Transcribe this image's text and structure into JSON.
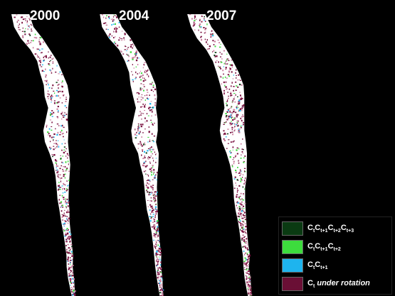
{
  "panels": [
    {
      "year": "2000"
    },
    {
      "year": "2004"
    },
    {
      "year": "2007"
    }
  ],
  "legend": [
    {
      "swatch": "#0a3a12",
      "base": "C",
      "parts": [
        [
          "",
          "t"
        ],
        [
          "",
          "t+1"
        ],
        [
          "",
          "t+2"
        ],
        [
          "",
          "t+3"
        ]
      ],
      "suffix": ""
    },
    {
      "swatch": "#3ddc3d",
      "base": "C",
      "parts": [
        [
          "",
          "t"
        ],
        [
          "",
          "t+1"
        ],
        [
          "",
          "t+2"
        ]
      ],
      "suffix": ""
    },
    {
      "swatch": "#1eb4ee",
      "base": "C",
      "parts": [
        [
          "",
          "t"
        ],
        [
          "",
          "t+1"
        ]
      ],
      "suffix": ""
    },
    {
      "swatch": "#6a0f35",
      "base": "C",
      "parts": [
        [
          "",
          "t"
        ]
      ],
      "suffix": " under rotation"
    }
  ],
  "colors": {
    "background": "#000000",
    "land": "#ffffff",
    "rotation": "#7a1240",
    "rotation_light": "#c87a9a",
    "two_year": "#1eb4ee",
    "three_year": "#3ddc3d",
    "four_year": "#0a3a12"
  }
}
